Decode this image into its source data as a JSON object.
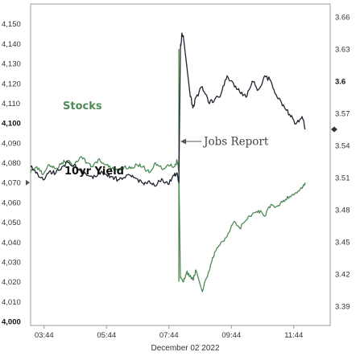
{
  "chart_data": {
    "type": "line",
    "title": "",
    "xlabel": "December 02 2022",
    "x_ticks": [
      "03:44",
      "05:44",
      "07:44",
      "09:44",
      "11:44"
    ],
    "x_tick_hours": [
      3.733,
      5.733,
      7.733,
      9.733,
      11.733
    ],
    "xlim": [
      3.3,
      12.9
    ],
    "y_left": {
      "ticks": [
        "4,000",
        "4,010",
        "4,020",
        "4,030",
        "4,040",
        "4,050",
        "4,060",
        "4,070",
        "4,080",
        "4,090",
        "4,100",
        "4,110",
        "4,120",
        "4,130",
        "4,140",
        "4,150"
      ],
      "tick_values": [
        4000,
        4010,
        4020,
        4030,
        4040,
        4050,
        4060,
        4070,
        4080,
        4090,
        4100,
        4110,
        4120,
        4130,
        4140,
        4150
      ],
      "bold_ticks": [
        "4,000",
        "4,100"
      ],
      "ylim": [
        3998,
        4160
      ]
    },
    "y_right": {
      "ticks": [
        "3.39",
        "3.42",
        "3.45",
        "3.48",
        "3.51",
        "3.54",
        "3.57",
        "3.6",
        "3.63",
        "3.66"
      ],
      "tick_values": [
        3.39,
        3.42,
        3.45,
        3.48,
        3.51,
        3.54,
        3.57,
        3.6,
        3.63,
        3.66
      ],
      "bold_ticks": [
        "3.6"
      ],
      "ylim": [
        3.372,
        3.672
      ]
    },
    "grid": false,
    "series": [
      {
        "name": "Stocks",
        "axis": "left",
        "color": "#4e8a57",
        "x": [
          3.3,
          3.5,
          3.7,
          3.9,
          4.1,
          4.3,
          4.5,
          4.7,
          4.9,
          5.1,
          5.3,
          5.5,
          5.7,
          5.9,
          6.1,
          6.3,
          6.5,
          6.7,
          6.9,
          7.1,
          7.3,
          7.5,
          7.7,
          7.9,
          8.0,
          8.05,
          8.1,
          8.2,
          8.3,
          8.4,
          8.5,
          8.6,
          8.8,
          9.0,
          9.2,
          9.4,
          9.6,
          9.8,
          10.0,
          10.2,
          10.4,
          10.6,
          10.8,
          11.0,
          11.2,
          11.4,
          11.6,
          11.8,
          12.0,
          12.1
        ],
        "values": [
          4075,
          4078,
          4074,
          4079,
          4077,
          4080,
          4081,
          4079,
          4083,
          4080,
          4078,
          4082,
          4079,
          4077,
          4076,
          4078,
          4077,
          4079,
          4078,
          4075,
          4080,
          4077,
          4079,
          4078,
          4081,
          4076,
          4022,
          4020,
          4025,
          4023,
          4021,
          4026,
          4015,
          4025,
          4035,
          4040,
          4043,
          4050,
          4047,
          4051,
          4054,
          4056,
          4053,
          4059,
          4058,
          4061,
          4063,
          4065,
          4067,
          4070
        ]
      },
      {
        "name": "10yr Yield",
        "axis": "right",
        "color": "#1f2530",
        "x": [
          3.3,
          3.5,
          3.7,
          3.9,
          4.1,
          4.3,
          4.5,
          4.7,
          4.9,
          5.1,
          5.3,
          5.5,
          5.7,
          5.9,
          6.1,
          6.3,
          6.5,
          6.7,
          6.9,
          7.1,
          7.3,
          7.5,
          7.7,
          7.9,
          8.0,
          8.05,
          8.1,
          8.15,
          8.2,
          8.3,
          8.4,
          8.5,
          8.6,
          8.8,
          9.0,
          9.2,
          9.4,
          9.6,
          9.8,
          10.0,
          10.2,
          10.4,
          10.6,
          10.8,
          11.0,
          11.2,
          11.4,
          11.6,
          11.8,
          12.0,
          12.1
        ],
        "values": [
          3.52,
          3.515,
          3.508,
          3.516,
          3.514,
          3.52,
          3.524,
          3.522,
          3.517,
          3.512,
          3.509,
          3.515,
          3.513,
          3.511,
          3.508,
          3.51,
          3.512,
          3.509,
          3.505,
          3.507,
          3.502,
          3.509,
          3.504,
          3.512,
          3.514,
          3.505,
          3.63,
          3.645,
          3.64,
          3.615,
          3.59,
          3.575,
          3.585,
          3.595,
          3.58,
          3.583,
          3.588,
          3.605,
          3.598,
          3.59,
          3.585,
          3.6,
          3.592,
          3.605,
          3.6,
          3.585,
          3.578,
          3.569,
          3.56,
          3.567,
          3.555
        ]
      }
    ],
    "series_labels": {
      "stocks": "Stocks",
      "yield": "10yr Yield"
    },
    "annotations": [
      {
        "text": "Jobs Report",
        "x": 8.05
      }
    ]
  }
}
